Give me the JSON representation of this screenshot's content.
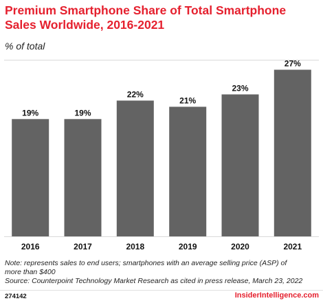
{
  "title": "Premium Smartphone Share of Total Smartphone Sales Worldwide, 2016-2021",
  "subtitle": "% of total",
  "note_line1": "Note: represents sales to end users; smartphones with an average selling price (ASP) of",
  "note_line2": "more than $400",
  "source": "Source: Counterpoint Technology Market Research as cited in press release, March 23, 2022",
  "chart_id": "274142",
  "brand": "InsiderIntelligence.com",
  "colors": {
    "bar": "#636363",
    "brand": "#e5202e"
  },
  "chart_data": {
    "type": "bar",
    "title": "Premium Smartphone Share of Total Smartphone Sales Worldwide, 2016-2021",
    "subtitle": "% of total",
    "categories": [
      "2016",
      "2017",
      "2018",
      "2019",
      "2020",
      "2021"
    ],
    "values": [
      19,
      19,
      22,
      21,
      23,
      27
    ],
    "value_labels": [
      "19%",
      "19%",
      "22%",
      "21%",
      "23%",
      "27%"
    ],
    "ylim": [
      0,
      28.5
    ],
    "grid": false,
    "xlabel": "",
    "ylabel": ""
  }
}
